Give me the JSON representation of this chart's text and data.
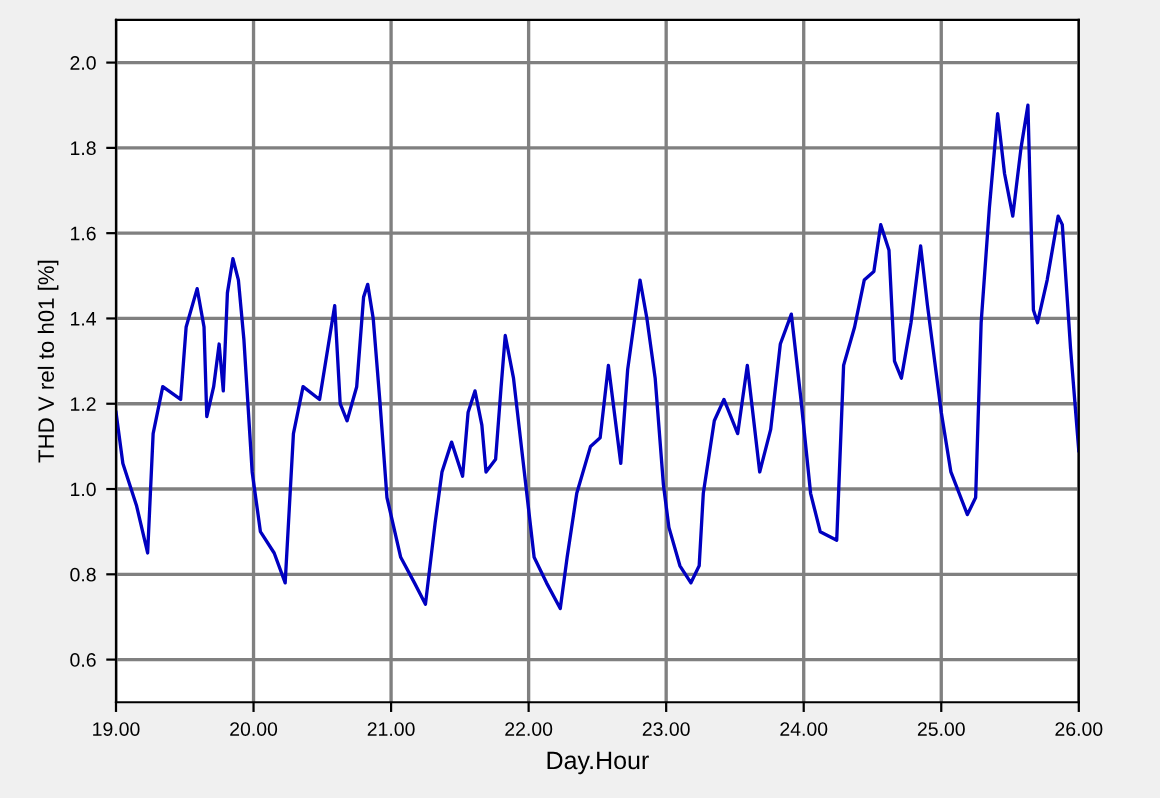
{
  "chart_data": {
    "type": "line",
    "xlabel": "Day.Hour",
    "ylabel": "THD V rel to h01 [%]",
    "xlim": [
      19,
      26
    ],
    "ylim": [
      0.5,
      2.1
    ],
    "xticks": [
      {
        "value": 19,
        "label": "19.00"
      },
      {
        "value": 20,
        "label": "20.00"
      },
      {
        "value": 21,
        "label": "21.00"
      },
      {
        "value": 22,
        "label": "22.00"
      },
      {
        "value": 23,
        "label": "23.00"
      },
      {
        "value": 24,
        "label": "24.00"
      },
      {
        "value": 25,
        "label": "25.00"
      },
      {
        "value": 26,
        "label": "26.00"
      }
    ],
    "yticks": [
      0.6,
      0.8,
      {
        "value": 1,
        "label": "1.0"
      },
      1.2,
      1.4,
      1.6,
      1.8,
      {
        "value": 2,
        "label": "2.0"
      }
    ],
    "grid": true,
    "legend": false,
    "marker": "none",
    "line_style": "solid",
    "series": [
      {
        "color": "#0000c0",
        "x": [
          19.0,
          19.05,
          19.15,
          19.23,
          19.27,
          19.34,
          19.47,
          19.51,
          19.59,
          19.64,
          19.66,
          19.71,
          19.75,
          19.78,
          19.81,
          19.85,
          19.89,
          19.93,
          19.99,
          20.05,
          20.15,
          20.23,
          20.29,
          20.36,
          20.48,
          20.56,
          20.59,
          20.63,
          20.68,
          20.75,
          20.8,
          20.83,
          20.87,
          20.92,
          20.97,
          21.07,
          21.17,
          21.25,
          21.32,
          21.37,
          21.44,
          21.52,
          21.56,
          21.61,
          21.66,
          21.69,
          21.76,
          21.8,
          21.83,
          21.89,
          21.94,
          21.99,
          22.04,
          22.13,
          22.23,
          22.28,
          22.35,
          22.45,
          22.52,
          22.58,
          22.67,
          22.72,
          22.81,
          22.86,
          22.92,
          22.98,
          23.02,
          23.1,
          23.18,
          23.24,
          23.27,
          23.35,
          23.42,
          23.52,
          23.59,
          23.68,
          23.76,
          23.83,
          23.91,
          23.98,
          24.05,
          24.12,
          24.24,
          24.29,
          24.37,
          24.44,
          24.51,
          24.56,
          24.62,
          24.66,
          24.71,
          24.78,
          24.85,
          24.9,
          25.0,
          25.07,
          25.19,
          25.25,
          25.29,
          25.35,
          25.41,
          25.46,
          25.52,
          25.58,
          25.63,
          25.67,
          25.7,
          25.77,
          25.85,
          25.88,
          25.94,
          26.0
        ],
        "values": [
          1.18,
          1.06,
          0.96,
          0.85,
          1.13,
          1.24,
          1.21,
          1.38,
          1.47,
          1.38,
          1.17,
          1.24,
          1.34,
          1.23,
          1.46,
          1.54,
          1.49,
          1.35,
          1.04,
          0.9,
          0.85,
          0.78,
          1.13,
          1.24,
          1.21,
          1.37,
          1.43,
          1.2,
          1.16,
          1.24,
          1.45,
          1.48,
          1.4,
          1.2,
          0.98,
          0.84,
          0.78,
          0.73,
          0.92,
          1.04,
          1.11,
          1.03,
          1.18,
          1.23,
          1.15,
          1.04,
          1.07,
          1.24,
          1.36,
          1.26,
          1.12,
          0.98,
          0.84,
          0.78,
          0.72,
          0.84,
          0.99,
          1.1,
          1.12,
          1.29,
          1.06,
          1.28,
          1.49,
          1.4,
          1.26,
          1.01,
          0.91,
          0.82,
          0.78,
          0.82,
          0.99,
          1.16,
          1.21,
          1.13,
          1.29,
          1.04,
          1.14,
          1.34,
          1.41,
          1.21,
          0.99,
          0.9,
          0.88,
          1.29,
          1.38,
          1.49,
          1.51,
          1.62,
          1.56,
          1.3,
          1.26,
          1.39,
          1.57,
          1.43,
          1.18,
          1.04,
          0.94,
          0.98,
          1.39,
          1.66,
          1.88,
          1.74,
          1.64,
          1.8,
          1.9,
          1.42,
          1.39,
          1.49,
          1.64,
          1.62,
          1.33,
          1.09
        ]
      }
    ]
  }
}
